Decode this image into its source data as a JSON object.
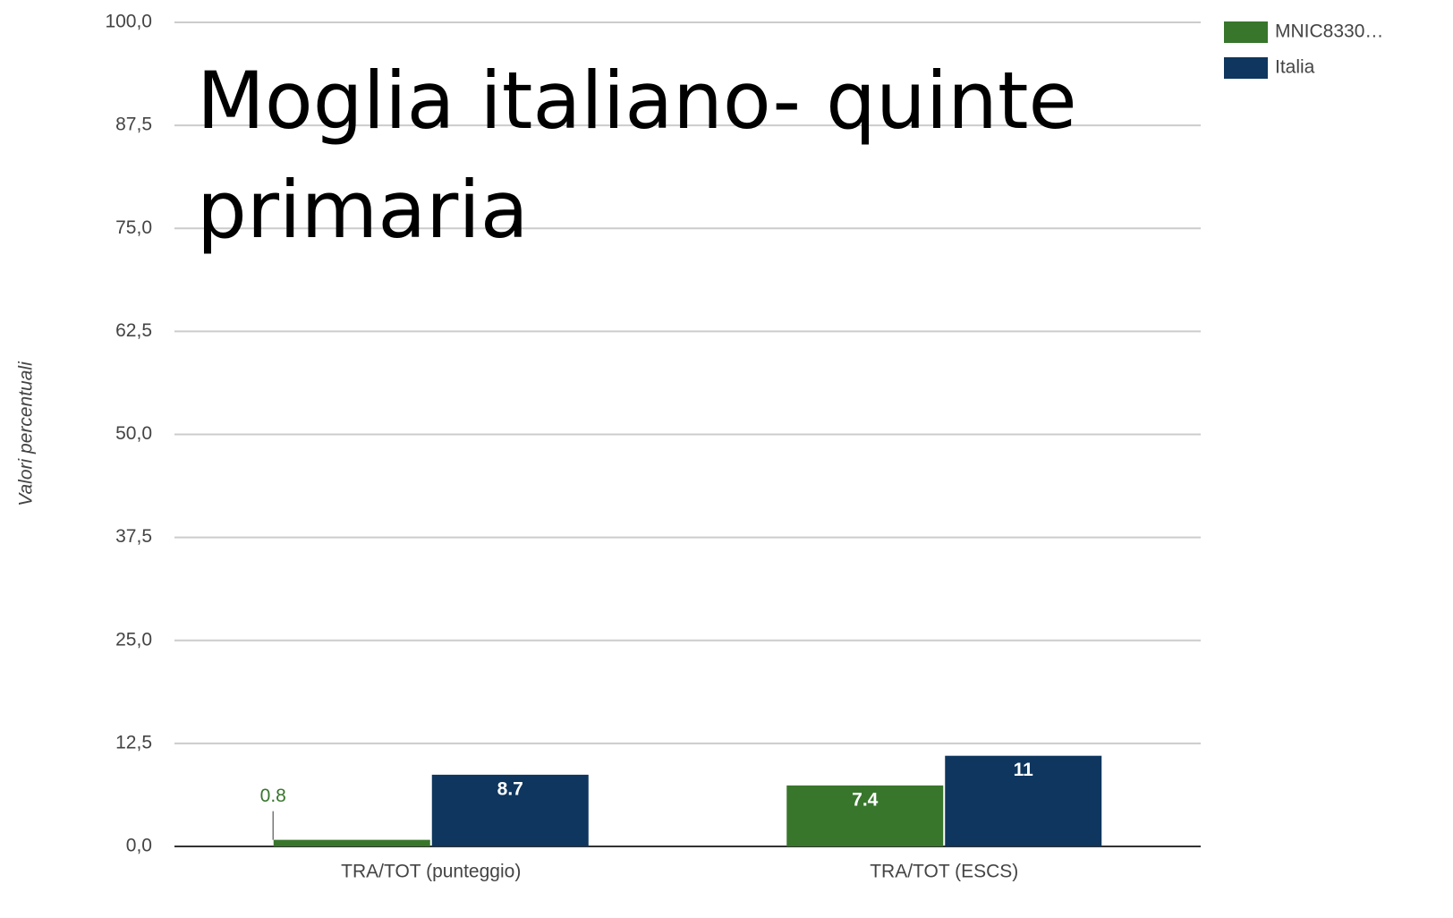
{
  "chart_data": {
    "type": "bar",
    "title": "Moglia italiano- quinte primaria",
    "y_label": "Valori percentuali",
    "categories": [
      "TRA/TOT (punteggio)",
      "TRA/TOT (ESCS)"
    ],
    "series": [
      {
        "name": "MNIC8330…",
        "color": "#38762c",
        "values": [
          0.8,
          7.4
        ]
      },
      {
        "name": "Italia",
        "color": "#0e365e",
        "values": [
          8.7,
          11
        ]
      }
    ],
    "ylim": [
      0,
      100
    ],
    "yticks": [
      {
        "value": 0,
        "label": "0,0"
      },
      {
        "value": 12.5,
        "label": "12,5"
      },
      {
        "value": 25,
        "label": "25,0"
      },
      {
        "value": 37.5,
        "label": "37,5"
      },
      {
        "value": 50,
        "label": "50,0"
      },
      {
        "value": 62.5,
        "label": "62,5"
      },
      {
        "value": 75,
        "label": "75,0"
      },
      {
        "value": 87.5,
        "label": "87,5"
      },
      {
        "value": 100,
        "label": "100,0"
      }
    ],
    "grid": true,
    "legend": "right"
  }
}
